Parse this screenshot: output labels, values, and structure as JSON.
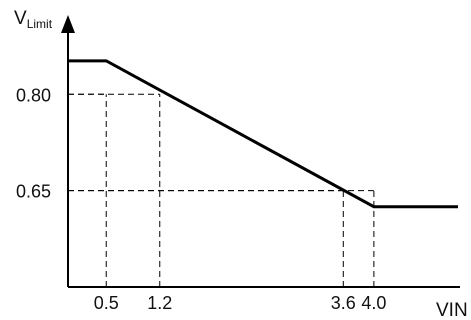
{
  "chart_data": {
    "type": "line",
    "xlabel": "VIN",
    "ylabel": {
      "main": "V",
      "sub": "Limit"
    },
    "x_ticks": [
      {
        "value": 0.5,
        "label": "0.5"
      },
      {
        "value": 1.2,
        "label": "1.2"
      },
      {
        "value": 3.6,
        "label": "3.6"
      },
      {
        "value": 4.0,
        "label": "4.0"
      }
    ],
    "y_ticks": [
      {
        "value": 0.8,
        "label": "0.80"
      },
      {
        "value": 0.65,
        "label": "0.65"
      }
    ],
    "xlim": [
      0.0,
      5.1
    ],
    "ylim": [
      0.5,
      0.9
    ],
    "series": [
      {
        "x": [
          0.0,
          0.5,
          4.0,
          5.1
        ],
        "y": [
          0.852,
          0.852,
          0.625,
          0.625
        ]
      }
    ],
    "guides": [
      {
        "x": 0.5,
        "y": 0.8
      },
      {
        "x": 1.2,
        "y": 0.8
      },
      {
        "x": 3.6,
        "y": 0.65
      },
      {
        "x": 4.0,
        "y": 0.65
      }
    ],
    "grid": false,
    "colors": {
      "line": "#000000",
      "axis": "#000000",
      "guide": "#000000"
    }
  }
}
